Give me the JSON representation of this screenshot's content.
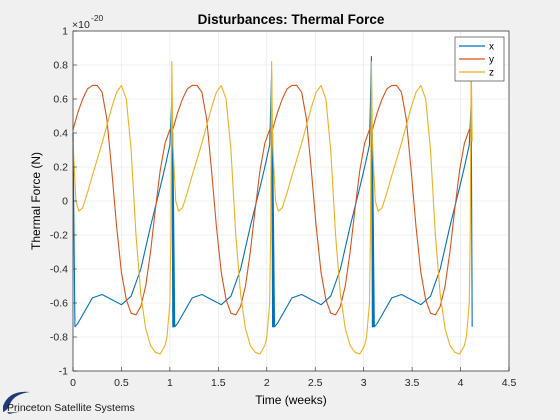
{
  "chart_data": {
    "type": "line",
    "title": "Disturbances: Thermal Force",
    "xlabel": "Time (weeks)",
    "ylabel": "Thermal Force (N)",
    "exponent_base": "×10",
    "exponent_power": "-20",
    "xlim": [
      0,
      4.5
    ],
    "ylim": [
      -1,
      1
    ],
    "xticks": [
      "0",
      "0.5",
      "1",
      "1.5",
      "2",
      "2.5",
      "3",
      "3.5",
      "4",
      "4.5"
    ],
    "yticks": [
      "-1",
      "-0.8",
      "-0.6",
      "-0.4",
      "-0.2",
      "0",
      "0.2",
      "0.4",
      "0.6",
      "0.8",
      "1"
    ],
    "grid": true,
    "legend_position": "top-right",
    "period_weeks": 1.03,
    "series": [
      {
        "name": "x",
        "color": "#0072bd",
        "x": [
          0,
          0.02,
          0.05,
          0.1,
          0.2,
          0.3,
          0.4,
          0.5,
          0.6,
          0.7,
          0.8,
          0.9,
          0.95,
          1.0,
          1.02,
          1.03,
          1.04
        ],
        "values": [
          0.4,
          -0.74,
          -0.72,
          -0.67,
          -0.57,
          -0.55,
          -0.58,
          -0.61,
          -0.56,
          -0.4,
          -0.15,
          0.08,
          0.2,
          0.33,
          0.55,
          -0.74,
          -0.74
        ],
        "spikes": [
          0.6,
          0.75,
          0.85,
          0.58
        ]
      },
      {
        "name": "y",
        "color": "#d95319",
        "x": [
          0,
          0.05,
          0.1,
          0.15,
          0.2,
          0.25,
          0.3,
          0.35,
          0.4,
          0.45,
          0.5,
          0.55,
          0.6,
          0.65,
          0.7,
          0.75,
          0.8,
          0.85,
          0.9,
          0.95,
          1.0,
          1.03
        ],
        "values": [
          0.42,
          0.52,
          0.6,
          0.66,
          0.68,
          0.68,
          0.64,
          0.48,
          0.18,
          -0.15,
          -0.42,
          -0.58,
          -0.66,
          -0.67,
          -0.62,
          -0.5,
          -0.3,
          -0.05,
          0.18,
          0.34,
          0.42,
          0.44
        ]
      },
      {
        "name": "z",
        "color": "#edb120",
        "x": [
          0,
          0.03,
          0.06,
          0.1,
          0.15,
          0.2,
          0.3,
          0.4,
          0.45,
          0.5,
          0.55,
          0.6,
          0.65,
          0.7,
          0.75,
          0.8,
          0.85,
          0.9,
          0.95,
          0.97,
          1.0,
          1.01,
          1.02,
          1.03
        ],
        "values": [
          0.35,
          0.0,
          -0.06,
          -0.04,
          0.05,
          0.15,
          0.34,
          0.55,
          0.64,
          0.68,
          0.6,
          0.3,
          -0.2,
          -0.55,
          -0.75,
          -0.85,
          -0.89,
          -0.9,
          -0.85,
          -0.8,
          -0.6,
          -0.2,
          0.82,
          0.35
        ]
      }
    ]
  },
  "footer": {
    "brand": "Princeton Satellite Systems",
    "logo_color": "#1f3a7a"
  }
}
